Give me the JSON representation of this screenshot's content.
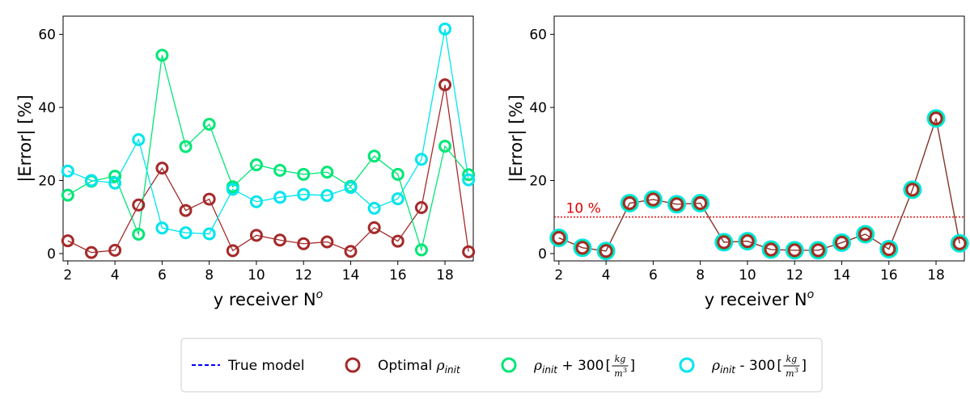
{
  "chart_data": [
    {
      "type": "line",
      "xlabel": "y receiver N",
      "xlabel_sup": "o",
      "ylabel": "|Error| [%]",
      "xlim": [
        1.8,
        19.2
      ],
      "ylim": [
        -2,
        65
      ],
      "xticks": [
        2,
        4,
        6,
        8,
        10,
        12,
        14,
        16,
        18
      ],
      "yticks": [
        0,
        20,
        40,
        60
      ],
      "x": [
        2,
        3,
        4,
        5,
        6,
        7,
        8,
        9,
        10,
        11,
        12,
        13,
        14,
        15,
        16,
        17,
        18,
        19
      ],
      "series": [
        {
          "key": "optimal",
          "color": "#a52a2a",
          "values": [
            3.5,
            0.3,
            0.9,
            13.3,
            23.4,
            11.8,
            14.9,
            0.8,
            5.0,
            3.7,
            2.7,
            3.2,
            0.6,
            7.1,
            3.4,
            12.6,
            46.2,
            0.5
          ]
        },
        {
          "key": "plus",
          "color": "#00e676",
          "values": [
            16.0,
            19.8,
            21.2,
            5.3,
            54.3,
            29.3,
            35.4,
            18.3,
            24.3,
            22.8,
            21.7,
            22.3,
            18.4,
            26.7,
            21.7,
            1.0,
            29.4,
            21.6
          ]
        },
        {
          "key": "minus",
          "color": "#00e5ee",
          "values": [
            22.6,
            20.0,
            19.3,
            31.2,
            7.0,
            5.7,
            5.4,
            17.6,
            14.2,
            15.4,
            16.2,
            15.9,
            18.1,
            12.4,
            15.0,
            25.8,
            61.5,
            20.2
          ]
        }
      ]
    },
    {
      "type": "line",
      "xlabel": "y receiver N",
      "xlabel_sup": "o",
      "ylabel": "|Error| [%]",
      "xlim": [
        1.8,
        19.2
      ],
      "ylim": [
        -2,
        65
      ],
      "xticks": [
        2,
        4,
        6,
        8,
        10,
        12,
        14,
        16,
        18
      ],
      "yticks": [
        0,
        20,
        40,
        60
      ],
      "threshold": {
        "value": 10,
        "label": "10 %",
        "color": "#e00000"
      },
      "x": [
        2,
        3,
        4,
        5,
        6,
        7,
        8,
        9,
        10,
        11,
        12,
        13,
        14,
        15,
        16,
        17,
        18,
        19
      ],
      "series": [
        {
          "key": "minus",
          "color": "#00e5ee",
          "values": [
            4.3,
            1.6,
            0.7,
            13.8,
            14.8,
            13.5,
            13.8,
            3.1,
            3.4,
            1.1,
            0.9,
            0.9,
            3.0,
            5.3,
            1.2,
            17.5,
            37.0,
            2.8
          ]
        },
        {
          "key": "plus",
          "color": "#00e676",
          "values": [
            4.3,
            1.6,
            0.7,
            13.8,
            14.8,
            13.5,
            13.8,
            3.1,
            3.4,
            1.1,
            0.9,
            0.9,
            3.0,
            5.3,
            1.2,
            17.5,
            37.0,
            2.8
          ]
        },
        {
          "key": "optimal",
          "color": "#a52a2a",
          "values": [
            4.3,
            1.6,
            0.7,
            13.8,
            14.8,
            13.5,
            13.8,
            3.1,
            3.4,
            1.1,
            0.9,
            0.9,
            3.0,
            5.3,
            1.2,
            17.5,
            37.0,
            2.8
          ]
        }
      ]
    }
  ],
  "legend": {
    "placement": "bottom-center",
    "items": [
      {
        "key": "true",
        "label": "True model",
        "color": "#0000ff",
        "marker": "dashed-line"
      },
      {
        "key": "optimal",
        "label": "Optimal ",
        "math": "ρ",
        "sub": "init",
        "suffix": "",
        "color": "#a52a2a",
        "marker": "circle"
      },
      {
        "key": "plus",
        "label": "",
        "math": "ρ",
        "sub": "init",
        "suffix": " + 300 ",
        "units": {
          "num": "kg",
          "den": "m",
          "den_sup": "3"
        },
        "color": "#00e676",
        "marker": "circle"
      },
      {
        "key": "minus",
        "label": "",
        "math": "ρ",
        "sub": "init",
        "suffix": " - 300 ",
        "units": {
          "num": "kg",
          "den": "m",
          "den_sup": "3"
        },
        "color": "#00e5ee",
        "marker": "circle"
      }
    ]
  }
}
